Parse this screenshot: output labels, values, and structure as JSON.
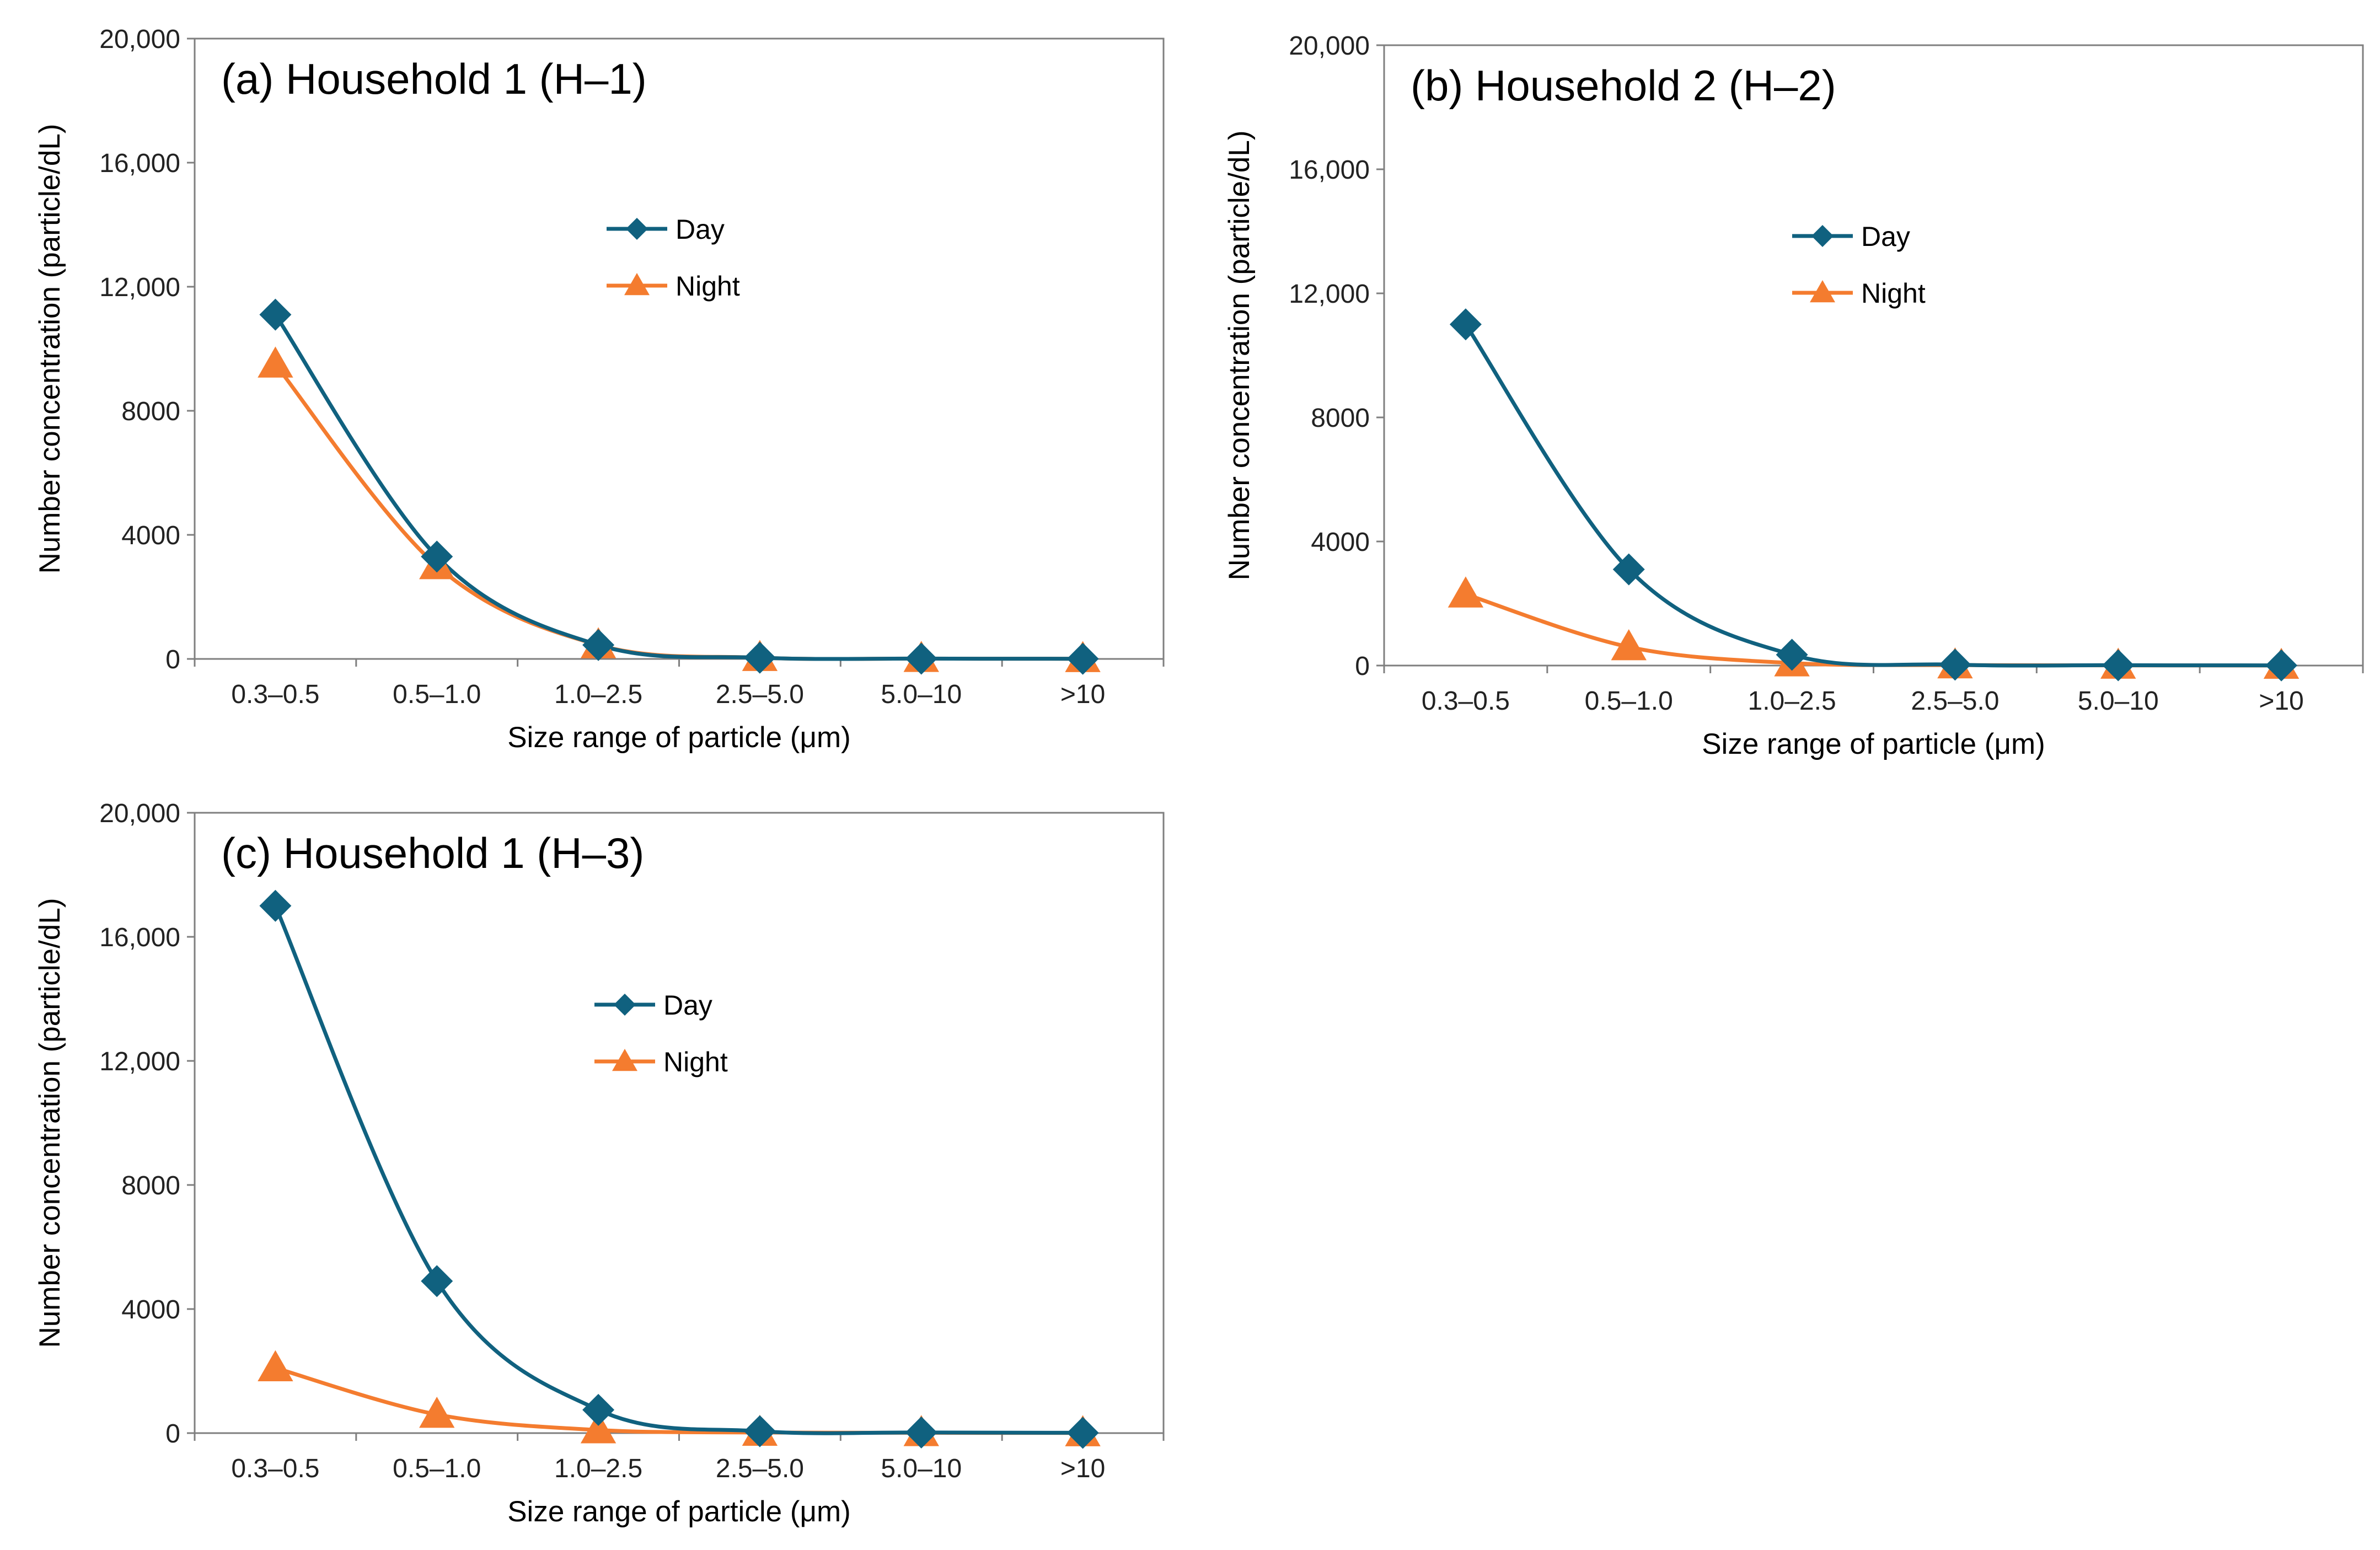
{
  "chart_data": [
    {
      "type": "line",
      "title": "(a) Household 1 (H–1)",
      "xlabel": "Size range of particle (μm)",
      "ylabel": "Number concentration (particle/dL)",
      "categories": [
        "0.3–0.5",
        "0.5–1.0",
        "1.0–2.5",
        "2.5–5.0",
        "5.0–10",
        ">10"
      ],
      "ylim": [
        0,
        20000
      ],
      "yticks": [
        0,
        4000,
        8000,
        12000,
        16000,
        20000
      ],
      "ytick_labels": [
        "0",
        "4000",
        "8000",
        "12,000",
        "16,000",
        "20,000"
      ],
      "series": [
        {
          "name": "Day",
          "marker": "diamond",
          "color": "#10617f",
          "values": [
            11100,
            3300,
            450,
            40,
            10,
            5
          ]
        },
        {
          "name": "Night",
          "marker": "triangle",
          "color": "#f47c2f",
          "values": [
            9500,
            3000,
            450,
            40,
            10,
            5
          ]
        }
      ],
      "legend_position": "upper-center"
    },
    {
      "type": "line",
      "title": "(b) Household 2 (H–2)",
      "xlabel": "Size range of particle (μm)",
      "ylabel": "Number concentration (particle/dL)",
      "categories": [
        "0.3–0.5",
        "0.5–1.0",
        "1.0–2.5",
        "2.5–5.0",
        "5.0–10",
        ">10"
      ],
      "ylim": [
        0,
        20000
      ],
      "yticks": [
        0,
        4000,
        8000,
        12000,
        16000,
        20000
      ],
      "ytick_labels": [
        "0",
        "4000",
        "8000",
        "12,000",
        "16,000",
        "20,000"
      ],
      "series": [
        {
          "name": "Day",
          "marker": "diamond",
          "color": "#10617f",
          "values": [
            11000,
            3100,
            350,
            30,
            10,
            5
          ]
        },
        {
          "name": "Night",
          "marker": "triangle",
          "color": "#f47c2f",
          "values": [
            2300,
            600,
            80,
            15,
            5,
            2
          ]
        }
      ],
      "legend_position": "upper-center"
    },
    {
      "type": "line",
      "title": "(c) Household 1 (H–3)",
      "xlabel": "Size range of particle (μm)",
      "ylabel": "Number concentration (particle/dL)",
      "categories": [
        "0.3–0.5",
        "0.5–1.0",
        "1.0–2.5",
        "2.5–5.0",
        "5.0–10",
        ">10"
      ],
      "ylim": [
        0,
        20000
      ],
      "yticks": [
        0,
        4000,
        8000,
        12000,
        16000,
        20000
      ],
      "ytick_labels": [
        "0",
        "4000",
        "8000",
        "12,000",
        "16,000",
        "20,000"
      ],
      "series": [
        {
          "name": "Day",
          "marker": "diamond",
          "color": "#10617f",
          "values": [
            17000,
            4900,
            750,
            60,
            20,
            10
          ]
        },
        {
          "name": "Night",
          "marker": "triangle",
          "color": "#f47c2f",
          "values": [
            2100,
            600,
            100,
            20,
            10,
            5
          ]
        }
      ],
      "legend_position": "upper-center"
    }
  ]
}
